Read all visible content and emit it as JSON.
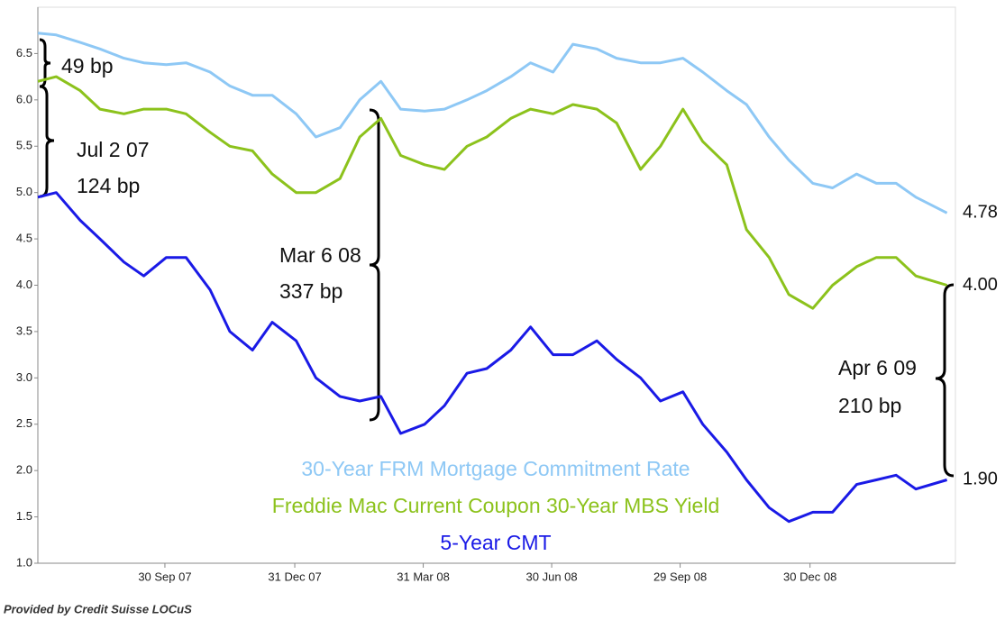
{
  "chart_data": {
    "type": "line",
    "x": [
      "2007-07-02",
      "2007-07-15",
      "2007-08-01",
      "2007-08-15",
      "2007-09-01",
      "2007-09-15",
      "2007-10-01",
      "2007-10-15",
      "2007-11-01",
      "2007-11-15",
      "2007-12-01",
      "2007-12-15",
      "2008-01-01",
      "2008-01-15",
      "2008-02-01",
      "2008-02-15",
      "2008-03-01",
      "2008-03-15",
      "2008-04-01",
      "2008-04-15",
      "2008-05-01",
      "2008-05-15",
      "2008-06-01",
      "2008-06-15",
      "2008-07-01",
      "2008-07-15",
      "2008-08-01",
      "2008-08-15",
      "2008-09-01",
      "2008-09-15",
      "2008-10-01",
      "2008-10-15",
      "2008-11-01",
      "2008-11-15",
      "2008-12-01",
      "2008-12-15",
      "2009-01-01",
      "2009-01-15",
      "2009-02-01",
      "2009-02-15",
      "2009-03-01",
      "2009-03-15",
      "2009-04-06"
    ],
    "series": [
      {
        "name": "30-Year FRM Mortgage Commitment Rate",
        "color": "#8ec8f5",
        "end_label": "4.78",
        "values": [
          6.72,
          6.7,
          6.62,
          6.55,
          6.45,
          6.4,
          6.38,
          6.4,
          6.3,
          6.15,
          6.05,
          6.05,
          5.85,
          5.6,
          5.7,
          6.0,
          6.2,
          5.9,
          5.88,
          5.9,
          6.0,
          6.1,
          6.25,
          6.4,
          6.3,
          6.6,
          6.55,
          6.45,
          6.4,
          6.4,
          6.45,
          6.3,
          6.1,
          5.95,
          5.6,
          5.35,
          5.1,
          5.05,
          5.2,
          5.1,
          5.1,
          4.95,
          4.78
        ]
      },
      {
        "name": "Freddie Mac Current Coupon 30-Year MBS Yield",
        "color": "#8cc21c",
        "end_label": "4.00",
        "values": [
          6.2,
          6.25,
          6.1,
          5.9,
          5.85,
          5.9,
          5.9,
          5.85,
          5.65,
          5.5,
          5.45,
          5.2,
          5.0,
          5.0,
          5.15,
          5.6,
          5.8,
          5.4,
          5.3,
          5.25,
          5.5,
          5.6,
          5.8,
          5.9,
          5.85,
          5.95,
          5.9,
          5.75,
          5.25,
          5.5,
          5.9,
          5.55,
          5.3,
          4.6,
          4.3,
          3.9,
          3.75,
          4.0,
          4.2,
          4.3,
          4.3,
          4.1,
          4.0
        ]
      },
      {
        "name": "5-Year CMT",
        "color": "#1a1ae6",
        "end_label": "1.90",
        "values": [
          4.95,
          5.0,
          4.7,
          4.5,
          4.25,
          4.1,
          4.3,
          4.3,
          3.95,
          3.5,
          3.3,
          3.6,
          3.4,
          3.0,
          2.8,
          2.75,
          2.8,
          2.4,
          2.5,
          2.7,
          3.05,
          3.1,
          3.3,
          3.55,
          3.25,
          3.25,
          3.4,
          3.2,
          3.0,
          2.75,
          2.85,
          2.5,
          2.2,
          1.9,
          1.6,
          1.45,
          1.55,
          1.55,
          1.85,
          1.9,
          1.95,
          1.8,
          1.9
        ]
      }
    ],
    "xlim": [
      "2007-07-02",
      "2009-04-12"
    ],
    "xticks": [
      {
        "value": "2007-09-30",
        "label": "30 Sep 07"
      },
      {
        "value": "2007-12-31",
        "label": "31 Dec 07"
      },
      {
        "value": "2008-03-31",
        "label": "31 Mar 08"
      },
      {
        "value": "2008-06-30",
        "label": "30 Jun 08"
      },
      {
        "value": "2008-09-29",
        "label": "29 Sep 08"
      },
      {
        "value": "2008-12-30",
        "label": "30 Dec 08"
      }
    ],
    "ylim": [
      1,
      7
    ],
    "yticks": [
      {
        "value": 1,
        "label": "1.0"
      },
      {
        "value": 1.5,
        "label": "1.5"
      },
      {
        "value": 2,
        "label": "2.0"
      },
      {
        "value": 2.5,
        "label": "2.5"
      },
      {
        "value": 3,
        "label": "3.0"
      },
      {
        "value": 3.5,
        "label": "3.5"
      },
      {
        "value": 4,
        "label": "4.0"
      },
      {
        "value": 4.5,
        "label": "4.5"
      },
      {
        "value": 5,
        "label": "5.0"
      },
      {
        "value": 5.5,
        "label": "5.5"
      },
      {
        "value": 6,
        "label": "6.0"
      },
      {
        "value": 6.5,
        "label": "6.5"
      }
    ],
    "grid": false,
    "annotations": [
      "49 bp",
      "Jul 2 07",
      "124 bp",
      "Mar 6 08",
      "337 bp",
      "Apr 6 09",
      "210 bp"
    ],
    "source": "Provided by Credit Suisse LOCuS"
  }
}
